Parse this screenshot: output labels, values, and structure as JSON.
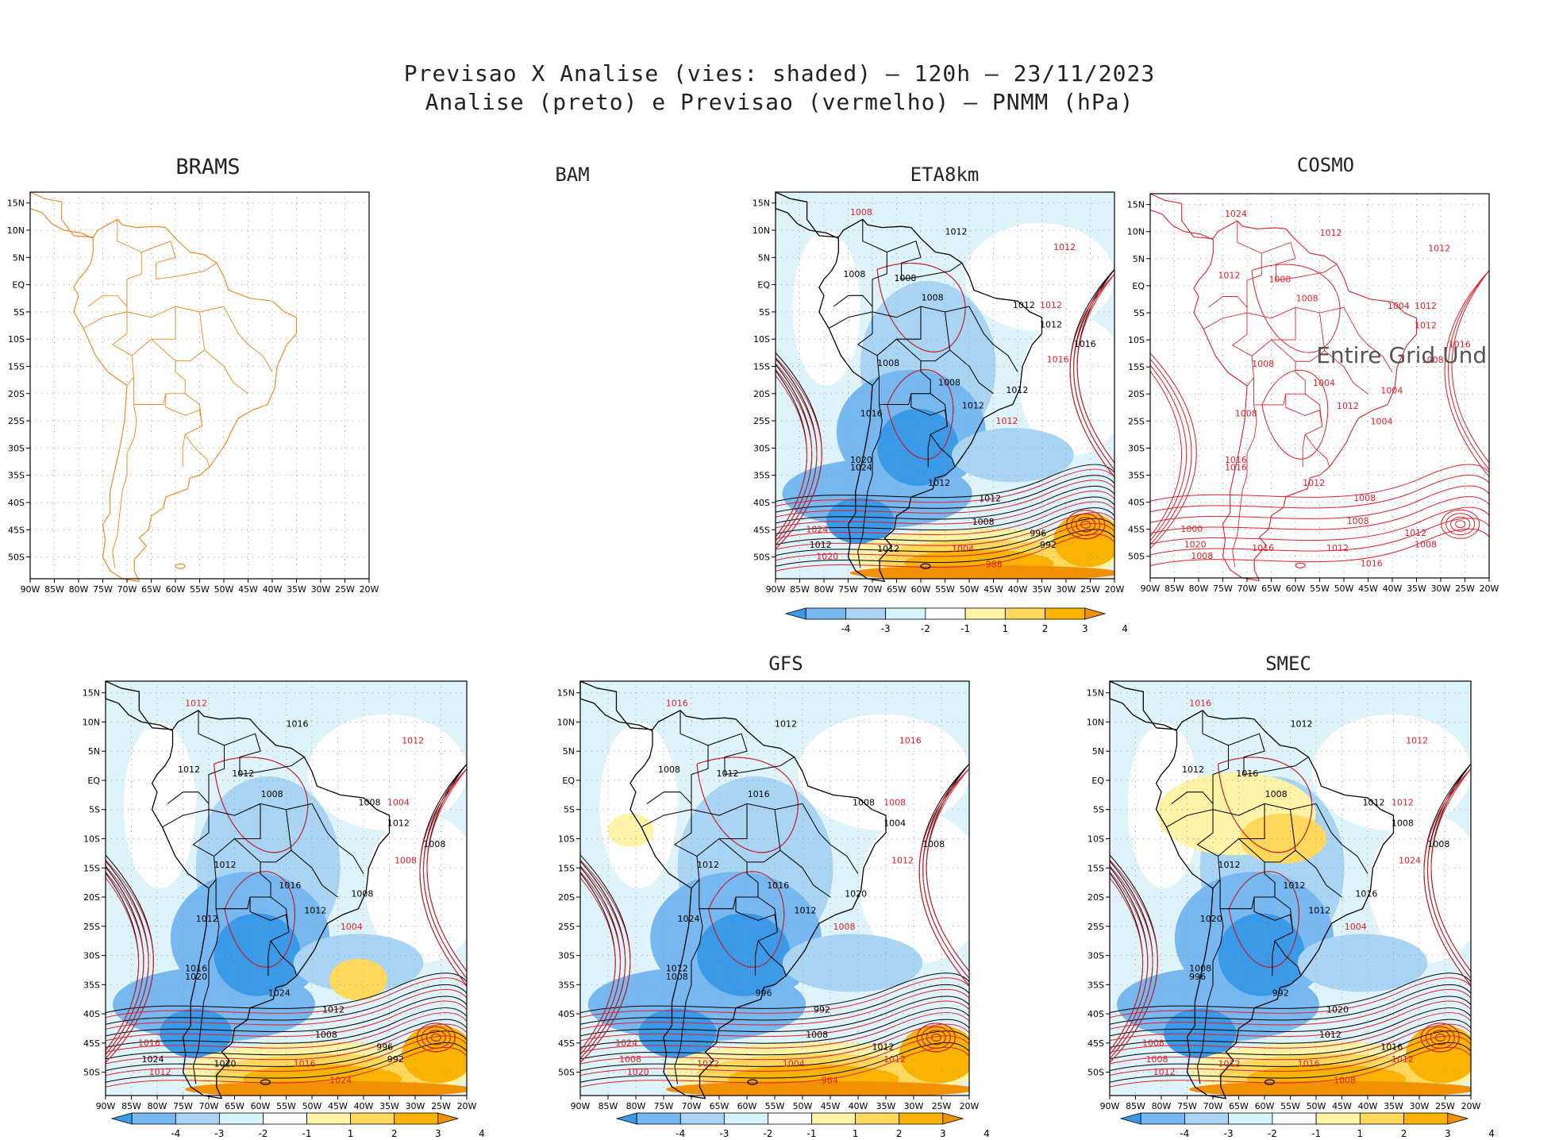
{
  "figure": {
    "title_line1": "Previsao X Analise (vies: shaded) — 120h — 23/11/2023",
    "title_line2": "Analise (preto) e Previsao (vermelho) — PNMM (hPa)"
  },
  "axes": {
    "lat_labels": [
      "15N",
      "10N",
      "5N",
      "EQ",
      "5S",
      "10S",
      "15S",
      "20S",
      "25S",
      "30S",
      "35S",
      "40S",
      "45S",
      "50S"
    ],
    "lon_labels": [
      "90W",
      "85W",
      "80W",
      "75W",
      "70W",
      "65W",
      "60W",
      "55W",
      "50W",
      "45W",
      "40W",
      "35W",
      "30W",
      "25W",
      "20W"
    ]
  },
  "colorbar": {
    "labels": [
      "-4",
      "-3",
      "-2",
      "-1",
      "1",
      "2",
      "3",
      "4"
    ],
    "colors": [
      "#3a9ae8",
      "#76b8ef",
      "#a9d4f4",
      "#d6f2fa",
      "#ffffff",
      "#fff3a8",
      "#ffd85c",
      "#f9b300",
      "#f19000"
    ]
  },
  "panels": [
    {
      "id": "brams",
      "name": "BRAMS",
      "state": "outline_only"
    },
    {
      "id": "bam",
      "name": "BAM",
      "state": "empty"
    },
    {
      "id": "eta8km",
      "name": "ETA8km",
      "state": "full",
      "contour_labels": [
        {
          "text": "1012",
          "color": "black"
        },
        {
          "text": "1008",
          "color": "black"
        },
        {
          "text": "1008",
          "color": "black"
        },
        {
          "text": "1008",
          "color": "black"
        },
        {
          "text": "1012",
          "color": "black"
        },
        {
          "text": "1012",
          "color": "black"
        },
        {
          "text": "1016",
          "color": "black"
        },
        {
          "text": "1008",
          "color": "black"
        },
        {
          "text": "1008",
          "color": "black"
        },
        {
          "text": "1012",
          "color": "black"
        },
        {
          "text": "1016",
          "color": "black"
        },
        {
          "text": "1012",
          "color": "black"
        },
        {
          "text": "1020",
          "color": "black"
        },
        {
          "text": "1024",
          "color": "black"
        },
        {
          "text": "1012",
          "color": "black"
        },
        {
          "text": "1012",
          "color": "black"
        },
        {
          "text": "1008",
          "color": "black"
        },
        {
          "text": "996",
          "color": "black"
        },
        {
          "text": "992",
          "color": "black"
        },
        {
          "text": "1012",
          "color": "black"
        },
        {
          "text": "1012",
          "color": "black"
        },
        {
          "text": "1008",
          "color": "red"
        },
        {
          "text": "1012",
          "color": "red"
        },
        {
          "text": "1016",
          "color": "red"
        },
        {
          "text": "1012",
          "color": "red"
        },
        {
          "text": "1024",
          "color": "red"
        },
        {
          "text": "1020",
          "color": "red"
        },
        {
          "text": "1004",
          "color": "red"
        },
        {
          "text": "988",
          "color": "red"
        },
        {
          "text": "1012",
          "color": "red"
        }
      ]
    },
    {
      "id": "cosmo",
      "name": "COSMO",
      "state": "red_only",
      "overlay_text": "Entire Grid Und",
      "contour_labels": [
        {
          "text": "1012",
          "color": "red"
        },
        {
          "text": "1012",
          "color": "red"
        },
        {
          "text": "1008",
          "color": "red"
        },
        {
          "text": "1008",
          "color": "red"
        },
        {
          "text": "1004",
          "color": "red"
        },
        {
          "text": "1012",
          "color": "red"
        },
        {
          "text": "1016",
          "color": "red"
        },
        {
          "text": "1008",
          "color": "red"
        },
        {
          "text": "1004",
          "color": "red"
        },
        {
          "text": "1004",
          "color": "red"
        },
        {
          "text": "1008",
          "color": "red"
        },
        {
          "text": "1012",
          "color": "red"
        },
        {
          "text": "1016",
          "color": "red"
        },
        {
          "text": "1016",
          "color": "red"
        },
        {
          "text": "1012",
          "color": "red"
        },
        {
          "text": "1008",
          "color": "red"
        },
        {
          "text": "1008",
          "color": "red"
        },
        {
          "text": "1012",
          "color": "red"
        },
        {
          "text": "1008",
          "color": "red"
        },
        {
          "text": "1016",
          "color": "red"
        },
        {
          "text": "1020",
          "color": "red"
        },
        {
          "text": "1024",
          "color": "red"
        },
        {
          "text": "1012",
          "color": "red"
        },
        {
          "text": "1008",
          "color": "red"
        },
        {
          "text": "1004",
          "color": "red"
        },
        {
          "text": "1000",
          "color": "red"
        },
        {
          "text": "1008",
          "color": "red"
        },
        {
          "text": "1012",
          "color": "red"
        },
        {
          "text": "1016",
          "color": "red"
        },
        {
          "text": "1012",
          "color": "red"
        }
      ]
    },
    {
      "id": "unnamed",
      "name": "",
      "state": "full",
      "contour_labels": [
        {
          "text": "1016",
          "color": "black"
        },
        {
          "text": "1012",
          "color": "black"
        },
        {
          "text": "1012",
          "color": "black"
        },
        {
          "text": "1008",
          "color": "black"
        },
        {
          "text": "1008",
          "color": "black"
        },
        {
          "text": "1012",
          "color": "black"
        },
        {
          "text": "1008",
          "color": "black"
        },
        {
          "text": "1012",
          "color": "black"
        },
        {
          "text": "1016",
          "color": "black"
        },
        {
          "text": "1008",
          "color": "black"
        },
        {
          "text": "1012",
          "color": "black"
        },
        {
          "text": "1012",
          "color": "black"
        },
        {
          "text": "1016",
          "color": "black"
        },
        {
          "text": "1020",
          "color": "black"
        },
        {
          "text": "1024",
          "color": "black"
        },
        {
          "text": "1012",
          "color": "black"
        },
        {
          "text": "1008",
          "color": "black"
        },
        {
          "text": "996",
          "color": "black"
        },
        {
          "text": "992",
          "color": "black"
        },
        {
          "text": "1020",
          "color": "black"
        },
        {
          "text": "1024",
          "color": "black"
        },
        {
          "text": "1012",
          "color": "red"
        },
        {
          "text": "1012",
          "color": "red"
        },
        {
          "text": "1008",
          "color": "red"
        },
        {
          "text": "1004",
          "color": "red"
        },
        {
          "text": "1016",
          "color": "red"
        },
        {
          "text": "1012",
          "color": "red"
        },
        {
          "text": "1016",
          "color": "red"
        },
        {
          "text": "1024",
          "color": "red"
        },
        {
          "text": "1004",
          "color": "red"
        }
      ]
    },
    {
      "id": "gfs",
      "name": "GFS",
      "state": "full",
      "contour_labels": [
        {
          "text": "1012",
          "color": "black"
        },
        {
          "text": "1008",
          "color": "black"
        },
        {
          "text": "1012",
          "color": "black"
        },
        {
          "text": "1016",
          "color": "black"
        },
        {
          "text": "1008",
          "color": "black"
        },
        {
          "text": "1004",
          "color": "black"
        },
        {
          "text": "1008",
          "color": "black"
        },
        {
          "text": "1012",
          "color": "black"
        },
        {
          "text": "1016",
          "color": "black"
        },
        {
          "text": "1020",
          "color": "black"
        },
        {
          "text": "1024",
          "color": "black"
        },
        {
          "text": "1012",
          "color": "black"
        },
        {
          "text": "1012",
          "color": "black"
        },
        {
          "text": "1008",
          "color": "black"
        },
        {
          "text": "996",
          "color": "black"
        },
        {
          "text": "992",
          "color": "black"
        },
        {
          "text": "1008",
          "color": "black"
        },
        {
          "text": "1012",
          "color": "black"
        },
        {
          "text": "1012",
          "color": "red"
        },
        {
          "text": "1012",
          "color": "red"
        },
        {
          "text": "1008",
          "color": "red"
        },
        {
          "text": "1016",
          "color": "red"
        },
        {
          "text": "1016",
          "color": "red"
        },
        {
          "text": "1012",
          "color": "red"
        },
        {
          "text": "1008",
          "color": "red"
        },
        {
          "text": "1024",
          "color": "red"
        },
        {
          "text": "1020",
          "color": "red"
        },
        {
          "text": "1004",
          "color": "red"
        },
        {
          "text": "984",
          "color": "red"
        },
        {
          "text": "1008",
          "color": "red"
        }
      ]
    },
    {
      "id": "smec",
      "name": "SMEC",
      "state": "full",
      "contour_labels": [
        {
          "text": "1012",
          "color": "black"
        },
        {
          "text": "1012",
          "color": "black"
        },
        {
          "text": "1016",
          "color": "black"
        },
        {
          "text": "1008",
          "color": "black"
        },
        {
          "text": "1012",
          "color": "black"
        },
        {
          "text": "1008",
          "color": "black"
        },
        {
          "text": "1008",
          "color": "black"
        },
        {
          "text": "1012",
          "color": "black"
        },
        {
          "text": "1012",
          "color": "black"
        },
        {
          "text": "1016",
          "color": "black"
        },
        {
          "text": "1020",
          "color": "black"
        },
        {
          "text": "1012",
          "color": "black"
        },
        {
          "text": "1008",
          "color": "black"
        },
        {
          "text": "996",
          "color": "black"
        },
        {
          "text": "992",
          "color": "black"
        },
        {
          "text": "1020",
          "color": "black"
        },
        {
          "text": "1012",
          "color": "black"
        },
        {
          "text": "1016",
          "color": "black"
        },
        {
          "text": "1012",
          "color": "red"
        },
        {
          "text": "1012",
          "color": "red"
        },
        {
          "text": "1008",
          "color": "red"
        },
        {
          "text": "1016",
          "color": "red"
        },
        {
          "text": "1012",
          "color": "red"
        },
        {
          "text": "1024",
          "color": "red"
        },
        {
          "text": "1004",
          "color": "red"
        },
        {
          "text": "1008",
          "color": "red"
        },
        {
          "text": "1012",
          "color": "red"
        },
        {
          "text": "1016",
          "color": "red"
        },
        {
          "text": "1008",
          "color": "red"
        },
        {
          "text": "1012",
          "color": "red"
        }
      ]
    }
  ]
}
